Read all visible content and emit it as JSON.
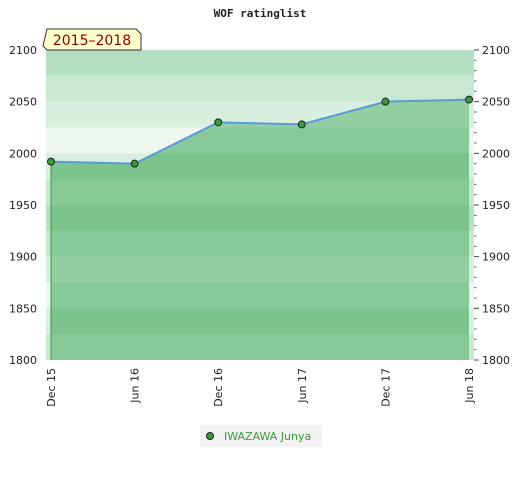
{
  "chart_data": {
    "type": "area",
    "title": "WOF ratinglist",
    "period_badge": "2015–2018",
    "x": [
      "Dec 15",
      "Jun 16",
      "Dec 16",
      "Jun 17",
      "Dec 17",
      "Jun 18"
    ],
    "series": [
      {
        "name": "IWAZAWA Junya",
        "values": [
          1992,
          1990,
          2030,
          2028,
          2050,
          2052
        ]
      }
    ],
    "ylim": [
      1800,
      2100
    ],
    "yticks": [
      1800,
      1850,
      1900,
      1950,
      2000,
      2050,
      2100
    ],
    "xlabel": "",
    "ylabel": "",
    "grid": true,
    "legend": "bottom-center",
    "colors": {
      "line": "#5b9bd5",
      "marker": "#3a9a3a",
      "area": "#7cc48e",
      "legend_text": "#3a9a3a",
      "badge_bg": "#ffffcc",
      "badge_text": "#8b0000"
    }
  }
}
